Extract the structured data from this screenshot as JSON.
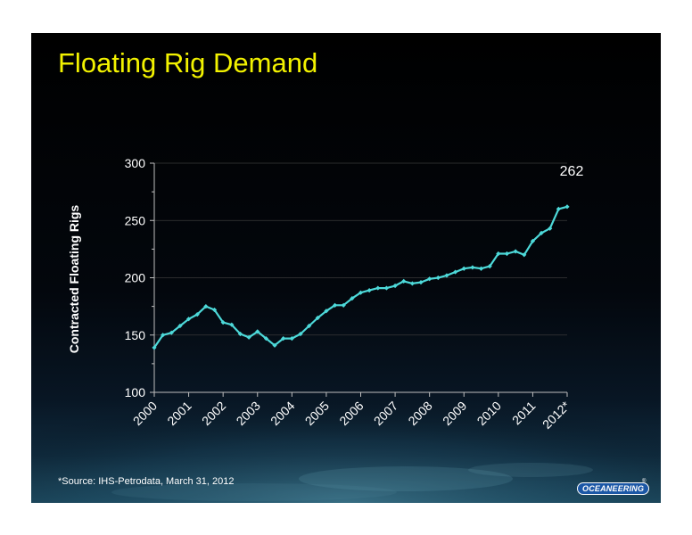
{
  "slide": {
    "title": "Floating Rig Demand",
    "source_note": "*Source:  IHS-Petrodata, March 31, 2012",
    "logo_text": "OCEANEERING",
    "logo_mark": "®"
  },
  "colors": {
    "title": "#f2f200",
    "series": "#4dd9d9",
    "text": "#ffffff",
    "logo_bg": "#1b57a6"
  },
  "chart_data": {
    "type": "line",
    "ylabel": "Contracted Floating Rigs",
    "ylim": [
      100,
      300
    ],
    "yticks": [
      100,
      150,
      200,
      250,
      300
    ],
    "xticks": [
      "2000",
      "2001",
      "2002",
      "2003",
      "2004",
      "2005",
      "2006",
      "2007",
      "2008",
      "2009",
      "2010",
      "2011",
      "2012*"
    ],
    "grid": true,
    "series": [
      {
        "values": [
          139,
          150,
          152,
          158,
          164,
          168,
          175,
          172,
          161,
          159,
          151,
          148,
          153,
          147,
          141,
          147,
          147,
          151,
          158,
          165,
          171,
          176,
          176,
          182,
          187,
          189,
          191,
          191,
          193,
          197,
          195,
          196,
          199,
          200,
          202,
          205,
          208,
          209,
          208,
          210,
          221,
          221,
          223,
          220,
          232,
          239,
          243,
          260,
          262
        ]
      }
    ],
    "annotations": [
      {
        "text": "262",
        "x": "2012*",
        "y": 262
      }
    ]
  }
}
